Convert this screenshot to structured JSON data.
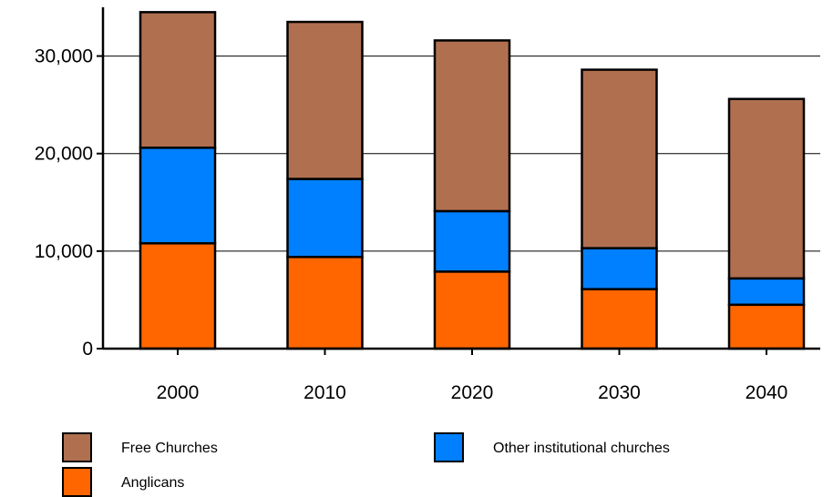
{
  "chart_data": {
    "type": "bar",
    "stacked": true,
    "title": "",
    "xlabel": "",
    "ylabel": "",
    "categories": [
      "2000",
      "2010",
      "2020",
      "2030",
      "2040"
    ],
    "series": [
      {
        "name": "Anglicans",
        "color": "#ff6600",
        "values": [
          10800,
          9400,
          7900,
          6100,
          4500
        ]
      },
      {
        "name": "Other institutional churches",
        "color": "#0080ff",
        "values": [
          9800,
          8000,
          6200,
          4200,
          2700
        ]
      },
      {
        "name": "Free Churches",
        "color": "#b07050",
        "values": [
          13900,
          16100,
          17500,
          18300,
          18400
        ]
      }
    ],
    "ylim": [
      0,
      35000
    ],
    "yticks": [
      0,
      10000,
      20000,
      30000
    ],
    "ytick_labels": [
      "0",
      "10,000",
      "20,000",
      "30,000"
    ],
    "grid": true,
    "legend_order": [
      "Free Churches",
      "Other institutional churches",
      "Anglicans"
    ],
    "legend_placement": "bottom"
  }
}
